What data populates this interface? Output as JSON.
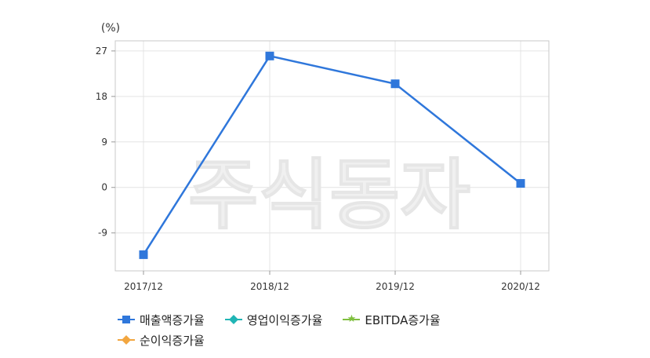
{
  "chart_data": {
    "type": "line",
    "unit_label": "(%)",
    "categories": [
      "2017/12",
      "2018/12",
      "2019/12",
      "2020/12"
    ],
    "yticks": [
      27,
      18,
      9,
      0,
      -9
    ],
    "ylim": [
      -16.5,
      29
    ],
    "grid": true,
    "series": [
      {
        "name": "매출액증가율",
        "values": [
          -13.3,
          26.0,
          20.5,
          0.8
        ],
        "color": "#2f77db",
        "marker": "square"
      }
    ],
    "legend": [
      {
        "name": "매출액증가율",
        "color": "#2f77db",
        "marker": "square"
      },
      {
        "name": "영업이익증가율",
        "color": "#20b5b5",
        "marker": "diamond"
      },
      {
        "name": "EBITDA증가율",
        "color": "#7fbf3f",
        "marker": "star"
      },
      {
        "name": "순이익증가율",
        "color": "#f2a640",
        "marker": "diamond"
      }
    ],
    "watermark": "주식동자"
  }
}
